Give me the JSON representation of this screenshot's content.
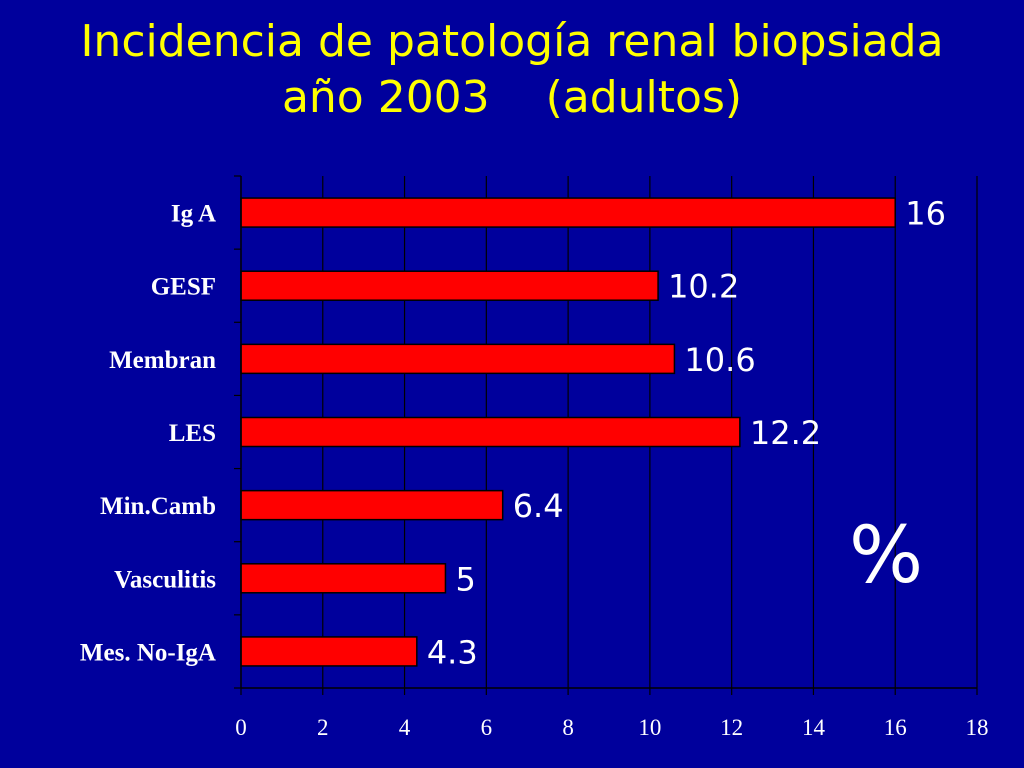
{
  "chart_data": {
    "type": "bar",
    "orientation": "horizontal",
    "title_line1": "Incidencia de patología renal biopsiada",
    "title_line2": "año 2003    (adultos)",
    "categories": [
      "Ig A",
      "GESF",
      "Membran",
      "LES",
      "Min.Camb",
      "Vasculitis",
      "Mes. No-IgA"
    ],
    "values": [
      16,
      10.2,
      10.6,
      12.2,
      6.4,
      5,
      4.3
    ],
    "value_labels": [
      "16",
      "10.2",
      "10.6",
      "12.2",
      "6.4",
      "5",
      "4.3"
    ],
    "xlim": [
      0,
      18
    ],
    "xticks": [
      "0",
      "2",
      "4",
      "6",
      "8",
      "10",
      "12",
      "14",
      "16",
      "18"
    ],
    "unit_label": "%",
    "grid": "vertical",
    "bar_color": "#ff0000",
    "background_color": "#00009c",
    "title_color": "#ffff00"
  }
}
